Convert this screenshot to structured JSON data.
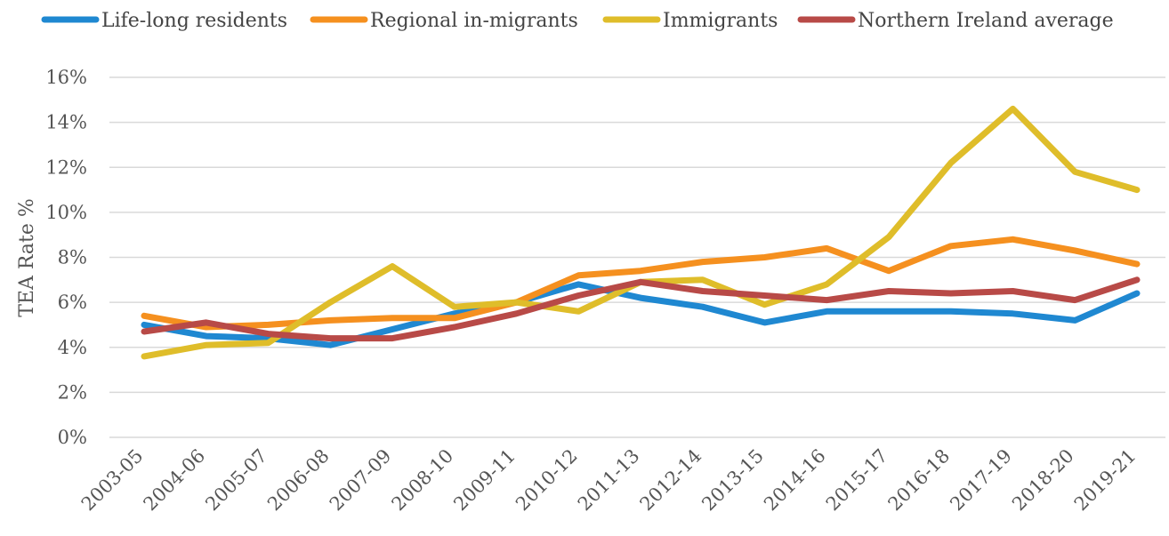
{
  "chart_data": {
    "type": "line",
    "title": "",
    "xlabel": "",
    "ylabel": "TEA Rate %",
    "ylim": [
      0,
      16
    ],
    "yticks": [
      "0%",
      "2%",
      "4%",
      "6%",
      "8%",
      "10%",
      "12%",
      "14%",
      "16%"
    ],
    "grid": true,
    "legend_position": "top",
    "categories": [
      "2003-05",
      "2004-06",
      "2005-07",
      "2006-08",
      "2007-09",
      "2008-10",
      "2009-11",
      "2010-12",
      "2011-13",
      "2012-14",
      "2013-15",
      "2014-16",
      "2015-17",
      "2016-18",
      "2017-19",
      "2018-20",
      "2019-21"
    ],
    "series": [
      {
        "name": "Life-long residents",
        "color": "#1f88d1",
        "values": [
          5.0,
          4.5,
          4.4,
          4.1,
          4.8,
          5.5,
          6.0,
          6.8,
          6.2,
          5.8,
          5.1,
          5.6,
          5.6,
          5.6,
          5.5,
          5.2,
          6.4
        ]
      },
      {
        "name": "Regional in-migrants",
        "color": "#f5901f",
        "values": [
          5.4,
          4.9,
          5.0,
          5.2,
          5.3,
          5.3,
          6.0,
          7.2,
          7.4,
          7.8,
          8.0,
          8.4,
          7.4,
          8.5,
          8.8,
          8.3,
          7.7
        ]
      },
      {
        "name": "Immigrants",
        "color": "#dfbd2a",
        "values": [
          3.6,
          4.1,
          4.2,
          6.0,
          7.6,
          5.8,
          6.0,
          5.6,
          6.9,
          7.0,
          5.9,
          6.8,
          8.9,
          12.2,
          14.6,
          11.8,
          11.0
        ]
      },
      {
        "name": "Northern Ireland average",
        "color": "#b84a47",
        "values": [
          4.7,
          5.1,
          4.6,
          4.4,
          4.4,
          4.9,
          5.5,
          6.3,
          6.9,
          6.5,
          6.3,
          6.1,
          6.5,
          6.4,
          6.5,
          6.1,
          7.0
        ]
      }
    ]
  }
}
